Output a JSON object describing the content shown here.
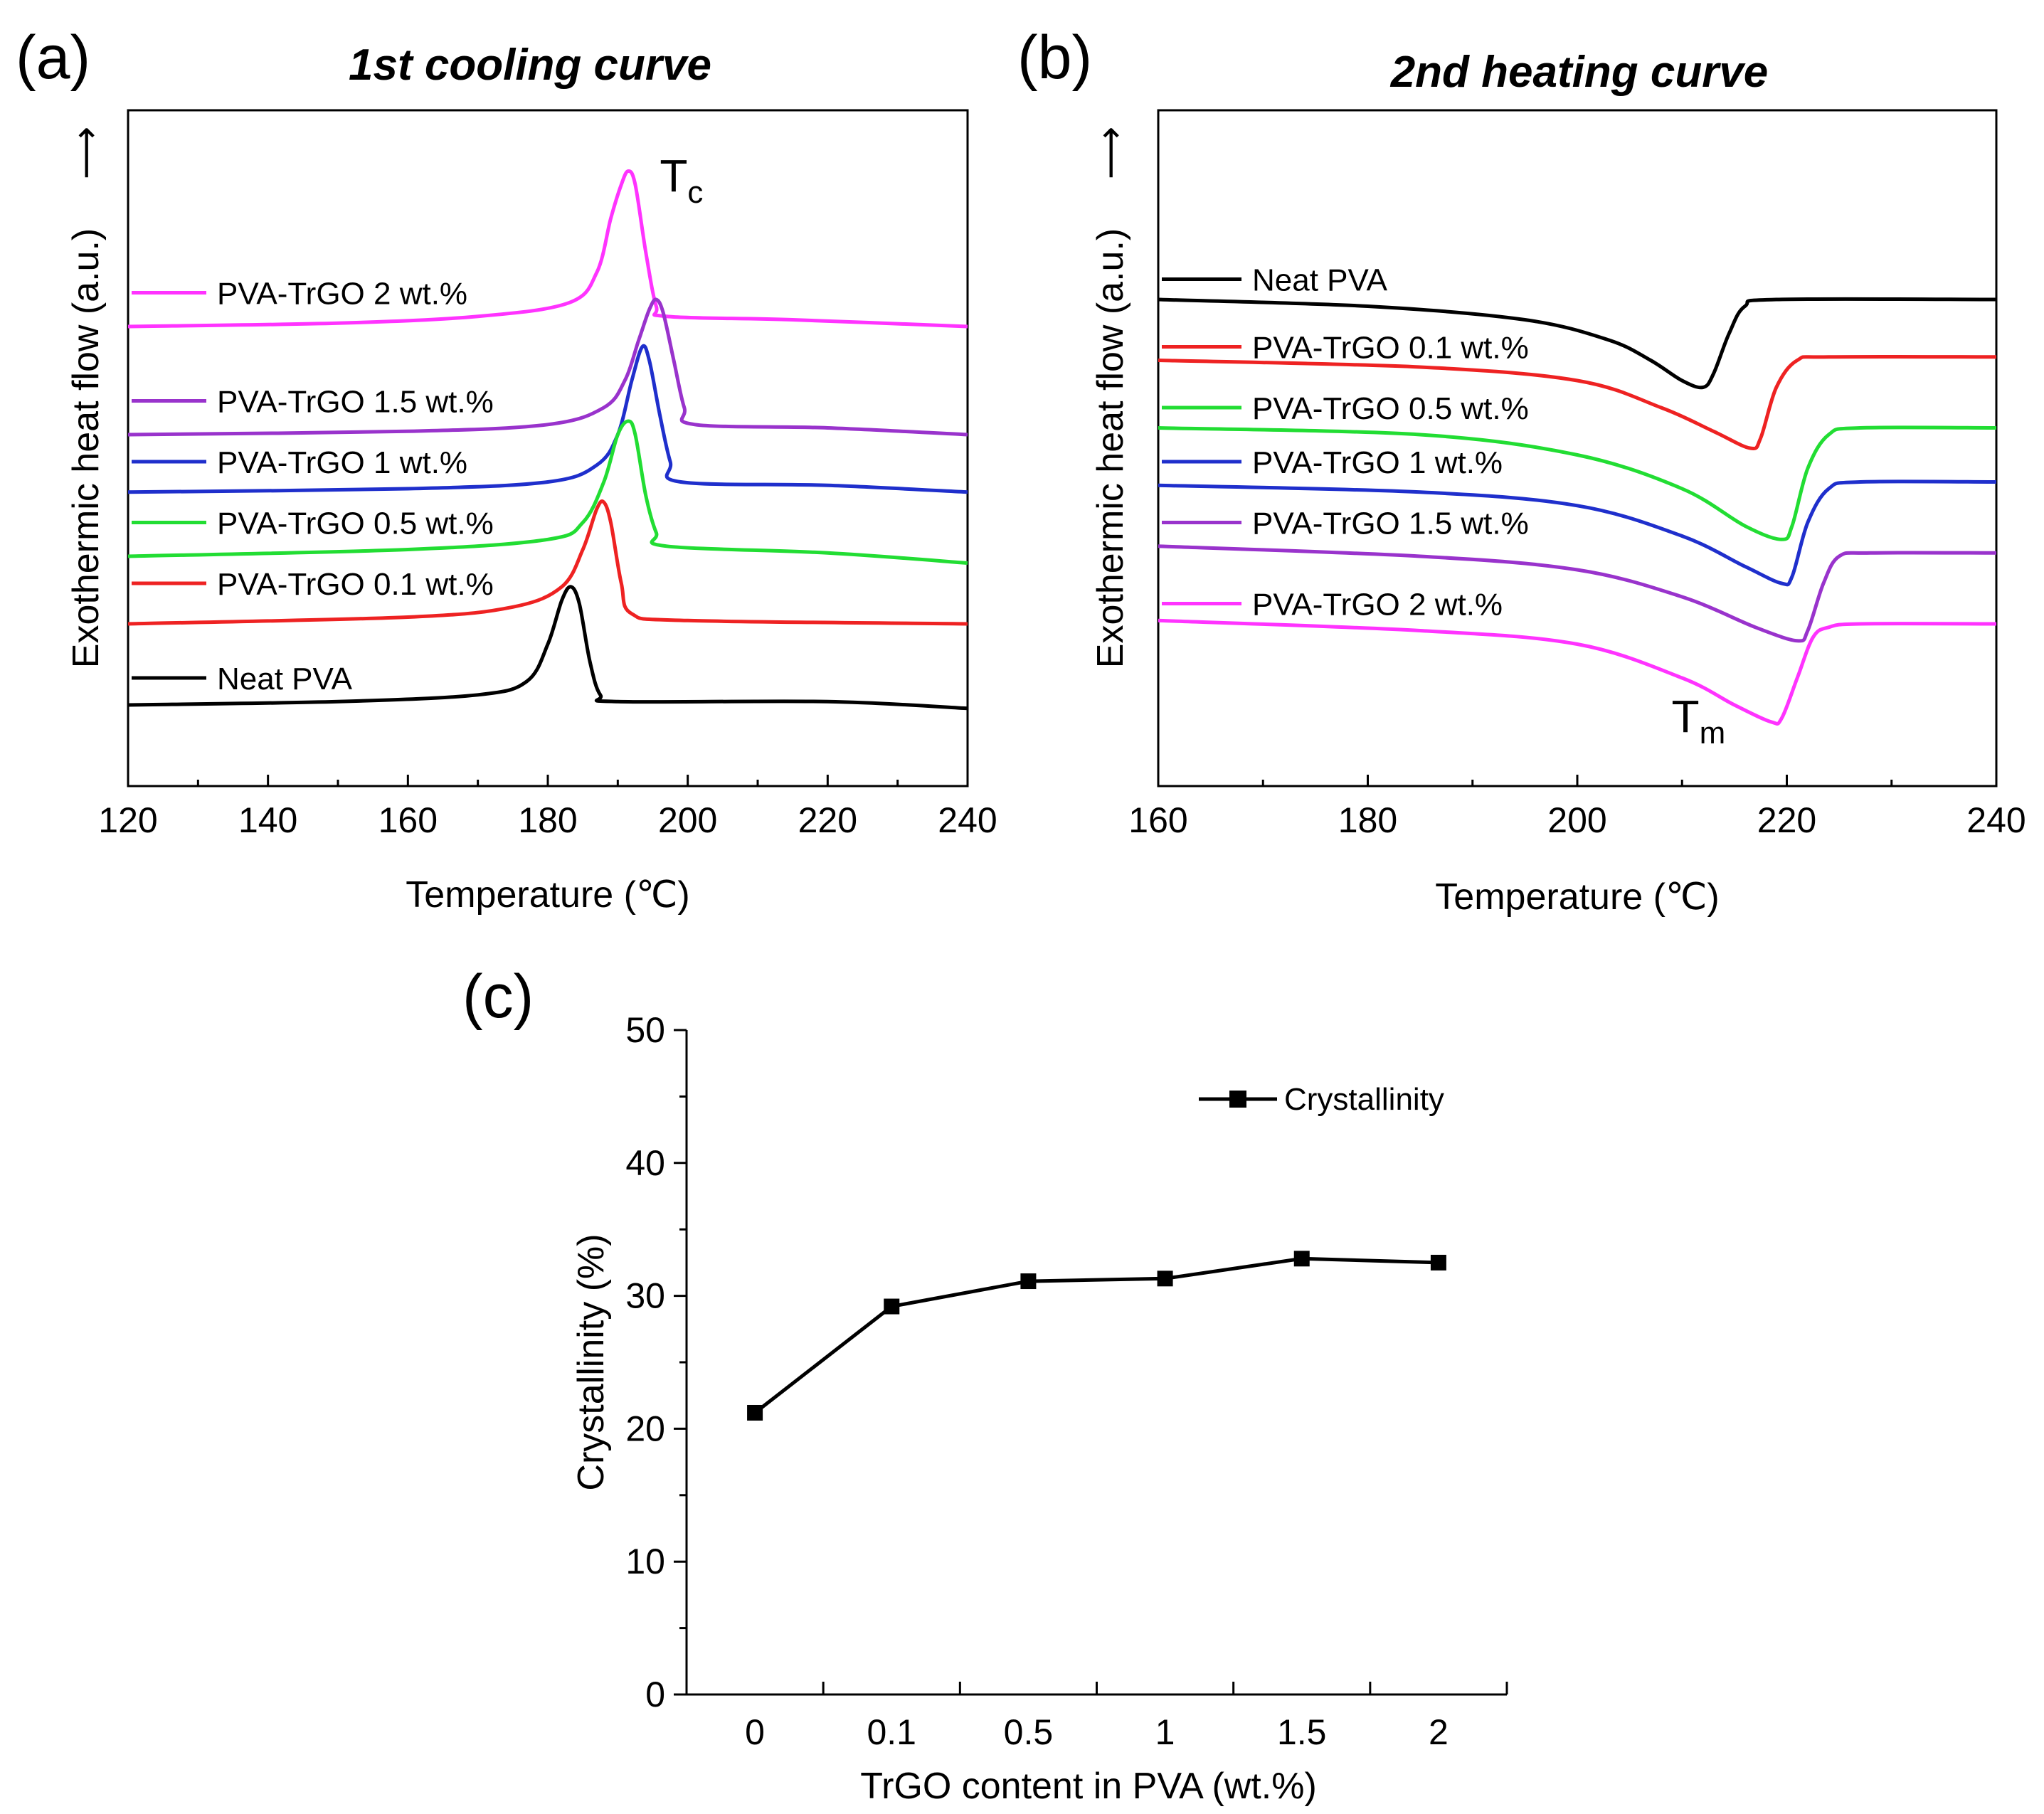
{
  "figure": {
    "panel_a_letter": "(a)",
    "panel_b_letter": "(b)",
    "panel_c_letter": "(c)",
    "arrow_glyph": "⟶"
  },
  "chart_data": [
    {
      "id": "a",
      "type": "line",
      "title": "1st cooling curve",
      "xlabel": "Temperature (℃)",
      "ylabel": "Exothermic heat flow (a.u.)",
      "xlim": [
        120,
        240
      ],
      "ylim": [
        0,
        10
      ],
      "xticks": [
        120,
        140,
        160,
        180,
        200,
        220,
        240
      ],
      "yticks_shown": false,
      "annotation": {
        "main": "T",
        "sub": "c",
        "x": 196,
        "y": 8.8
      },
      "series": [
        {
          "name": "PVA-TrGO 2 wt.%",
          "color": "#ff33ff",
          "label_y": 7.3,
          "points": [
            [
              120,
              6.8
            ],
            [
              150,
              6.85
            ],
            [
              170,
              6.95
            ],
            [
              183,
              7.15
            ],
            [
              187,
              7.6
            ],
            [
              189,
              8.4
            ],
            [
              190.5,
              8.9
            ],
            [
              191.5,
              9.1
            ],
            [
              192.5,
              8.9
            ],
            [
              194,
              7.9
            ],
            [
              195.5,
              7.1
            ],
            [
              197,
              6.95
            ],
            [
              215,
              6.9
            ],
            [
              240,
              6.8
            ]
          ]
        },
        {
          "name": "PVA-TrGO 1.5 wt.%",
          "color": "#9933cc",
          "label_y": 5.7,
          "points": [
            [
              120,
              5.2
            ],
            [
              160,
              5.25
            ],
            [
              180,
              5.35
            ],
            [
              188,
              5.6
            ],
            [
              191,
              6.0
            ],
            [
              193,
              6.6
            ],
            [
              194.5,
              7.05
            ],
            [
              195.5,
              7.2
            ],
            [
              196.5,
              7.0
            ],
            [
              198,
              6.3
            ],
            [
              199.5,
              5.6
            ],
            [
              201,
              5.35
            ],
            [
              220,
              5.3
            ],
            [
              240,
              5.2
            ]
          ]
        },
        {
          "name": "PVA-TrGO 1 wt.%",
          "color": "#1f2fcc",
          "label_y": 4.8,
          "points": [
            [
              120,
              4.35
            ],
            [
              160,
              4.4
            ],
            [
              180,
              4.5
            ],
            [
              187,
              4.75
            ],
            [
              190,
              5.2
            ],
            [
              192,
              6.0
            ],
            [
              193.5,
              6.5
            ],
            [
              194.5,
              6.3
            ],
            [
              196,
              5.5
            ],
            [
              197.5,
              4.8
            ],
            [
              199,
              4.5
            ],
            [
              220,
              4.45
            ],
            [
              240,
              4.35
            ]
          ]
        },
        {
          "name": "PVA-TrGO 0.5 wt.%",
          "color": "#22dd33",
          "label_y": 3.9,
          "points": [
            [
              120,
              3.4
            ],
            [
              160,
              3.5
            ],
            [
              180,
              3.65
            ],
            [
              185,
              3.9
            ],
            [
              188,
              4.5
            ],
            [
              190,
              5.2
            ],
            [
              191.5,
              5.4
            ],
            [
              192.5,
              5.2
            ],
            [
              194,
              4.3
            ],
            [
              195.5,
              3.75
            ],
            [
              197,
              3.55
            ],
            [
              220,
              3.45
            ],
            [
              240,
              3.3
            ]
          ]
        },
        {
          "name": "PVA-TrGO 0.1 wt.%",
          "color": "#ee2222",
          "label_y": 3.0,
          "points": [
            [
              120,
              2.4
            ],
            [
              160,
              2.5
            ],
            [
              175,
              2.65
            ],
            [
              182,
              2.95
            ],
            [
              185,
              3.5
            ],
            [
              187,
              4.1
            ],
            [
              188,
              4.2
            ],
            [
              189,
              3.9
            ],
            [
              190.5,
              3.0
            ],
            [
              192,
              2.55
            ],
            [
              200,
              2.45
            ],
            [
              240,
              2.4
            ]
          ]
        },
        {
          "name": "Neat PVA",
          "color": "#000000",
          "label_y": 1.6,
          "points": [
            [
              120,
              1.2
            ],
            [
              150,
              1.25
            ],
            [
              170,
              1.35
            ],
            [
              177,
              1.55
            ],
            [
              180,
              2.1
            ],
            [
              182,
              2.75
            ],
            [
              183.3,
              2.95
            ],
            [
              184.5,
              2.7
            ],
            [
              186,
              1.85
            ],
            [
              187.5,
              1.35
            ],
            [
              190,
              1.25
            ],
            [
              220,
              1.25
            ],
            [
              240,
              1.15
            ]
          ]
        }
      ]
    },
    {
      "id": "b",
      "type": "line",
      "title": "2nd heating  curve",
      "xlabel": "Temperature (℃)",
      "ylabel": "Exothermic heat flow (a.u.)",
      "xlim": [
        160,
        240
      ],
      "ylim": [
        0,
        10
      ],
      "xticks": [
        160,
        180,
        200,
        220,
        240
      ],
      "yticks_shown": false,
      "annotation": {
        "main": "T",
        "sub": "m",
        "x": 209,
        "y": 0.8
      },
      "series": [
        {
          "name": "Neat PVA",
          "color": "#000000",
          "label_y": 7.5,
          "points": [
            [
              160,
              7.2
            ],
            [
              180,
              7.1
            ],
            [
              195,
              6.9
            ],
            [
              203,
              6.6
            ],
            [
              207,
              6.3
            ],
            [
              210,
              6.0
            ],
            [
              212,
              5.9
            ],
            [
              213,
              6.1
            ],
            [
              214.5,
              6.7
            ],
            [
              216,
              7.1
            ],
            [
              219,
              7.2
            ],
            [
              240,
              7.2
            ]
          ]
        },
        {
          "name": "PVA-TrGO 0.1 wt.%",
          "color": "#ee2222",
          "label_y": 6.5,
          "points": [
            [
              160,
              6.3
            ],
            [
              185,
              6.2
            ],
            [
              200,
              6.0
            ],
            [
              208,
              5.6
            ],
            [
              213,
              5.25
            ],
            [
              216.5,
              5.0
            ],
            [
              217.5,
              5.15
            ],
            [
              219,
              5.9
            ],
            [
              221,
              6.3
            ],
            [
              224,
              6.35
            ],
            [
              240,
              6.35
            ]
          ]
        },
        {
          "name": "PVA-TrGO 0.5 wt.%",
          "color": "#22dd33",
          "label_y": 5.6,
          "points": [
            [
              160,
              5.3
            ],
            [
              185,
              5.2
            ],
            [
              200,
              4.9
            ],
            [
              210,
              4.4
            ],
            [
              216,
              3.85
            ],
            [
              219.5,
              3.65
            ],
            [
              220.5,
              3.85
            ],
            [
              222,
              4.7
            ],
            [
              224,
              5.2
            ],
            [
              227,
              5.3
            ],
            [
              240,
              5.3
            ]
          ]
        },
        {
          "name": "PVA-TrGO 1 wt.%",
          "color": "#1f2fcc",
          "label_y": 4.8,
          "points": [
            [
              160,
              4.45
            ],
            [
              185,
              4.35
            ],
            [
              200,
              4.15
            ],
            [
              210,
              3.7
            ],
            [
              216,
              3.25
            ],
            [
              219.5,
              3.0
            ],
            [
              220.5,
              3.1
            ],
            [
              222,
              3.9
            ],
            [
              224,
              4.4
            ],
            [
              227,
              4.5
            ],
            [
              240,
              4.5
            ]
          ]
        },
        {
          "name": "PVA-TrGO 1.5 wt.%",
          "color": "#9933cc",
          "label_y": 3.9,
          "points": [
            [
              160,
              3.55
            ],
            [
              185,
              3.4
            ],
            [
              200,
              3.2
            ],
            [
              210,
              2.8
            ],
            [
              217,
              2.35
            ],
            [
              221,
              2.15
            ],
            [
              222,
              2.3
            ],
            [
              223.5,
              3.0
            ],
            [
              225,
              3.4
            ],
            [
              228,
              3.45
            ],
            [
              240,
              3.45
            ]
          ]
        },
        {
          "name": "PVA-TrGO 2 wt.%",
          "color": "#ff33ff",
          "label_y": 2.7,
          "points": [
            [
              160,
              2.45
            ],
            [
              185,
              2.3
            ],
            [
              200,
              2.1
            ],
            [
              210,
              1.6
            ],
            [
              215,
              1.2
            ],
            [
              218.5,
              0.95
            ],
            [
              219.5,
              1.0
            ],
            [
              221,
              1.6
            ],
            [
              222.5,
              2.2
            ],
            [
              224,
              2.35
            ],
            [
              227,
              2.4
            ],
            [
              240,
              2.4
            ]
          ]
        }
      ]
    },
    {
      "id": "c",
      "type": "line",
      "xlabel": "TrGO content in PVA (wt.%)",
      "ylabel": "Crystallinity (%)",
      "ylim": [
        0,
        50
      ],
      "yticks": [
        0,
        10,
        20,
        30,
        40,
        50
      ],
      "categories": [
        "0",
        "0.1",
        "0.5",
        "1",
        "1.5",
        "2"
      ],
      "legend_position": "top-right",
      "series": [
        {
          "name": "Crystallinity",
          "color": "#000000",
          "marker": "square",
          "values": [
            21.2,
            29.2,
            31.1,
            31.3,
            32.8,
            32.5
          ]
        }
      ]
    }
  ]
}
